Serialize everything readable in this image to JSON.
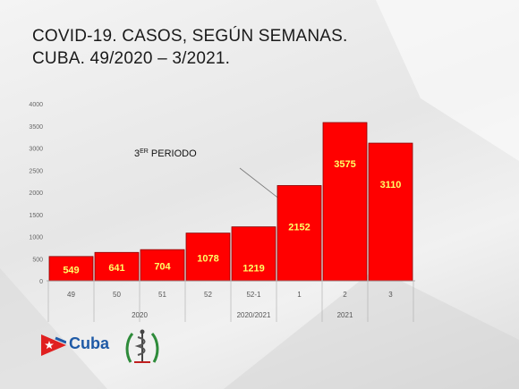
{
  "title": {
    "line1": "COVID-19. CASOS, SEGÚN SEMANAS.",
    "line2": "CUBA. 49/2020 – 3/2021."
  },
  "logo": {
    "text": "Cuba"
  },
  "colors": {
    "bar": "#ff0000",
    "bar_stroke": "#8a0000",
    "label": "#ffff66",
    "logo_blue": "#1f5aa6",
    "logo_red": "#e02020"
  },
  "chart_data": {
    "type": "bar",
    "categories": [
      "49",
      "50",
      "51",
      "52",
      "52-1",
      "1",
      "2",
      "3"
    ],
    "values": [
      549,
      641,
      704,
      1078,
      1219,
      2152,
      3575,
      3110
    ],
    "ylim": [
      0,
      4000
    ],
    "yticks": [
      "0",
      "500",
      "1000",
      "1500",
      "2000",
      "2500",
      "3000",
      "3500",
      "4000"
    ],
    "groups": [
      {
        "label": "2020",
        "span": [
          0,
          3
        ]
      },
      {
        "label": "2020/2021",
        "span": [
          4,
          4
        ]
      },
      {
        "label": "2021",
        "span": [
          5,
          7
        ]
      }
    ],
    "annotation": {
      "superscript_prefix": "3",
      "superscript": "ER",
      "text": " PERIODO",
      "anchor_index": 5
    },
    "grid": false,
    "legend": "none"
  }
}
